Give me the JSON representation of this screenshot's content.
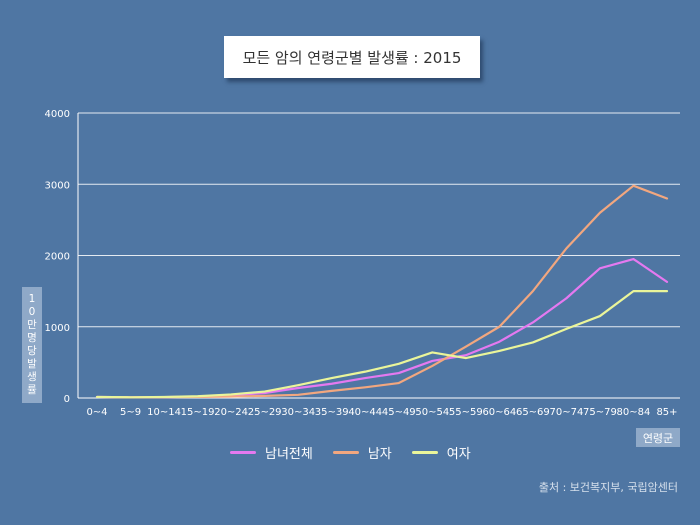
{
  "title": "모든 암의 연령군별 발생률 : 2015",
  "source": "출처 : 보건복지부, 국립암센터",
  "colors": {
    "background": "#4f76a3",
    "total": "#e579f0",
    "male": "#f2a77f",
    "female": "#eaf59a"
  },
  "chart_data": {
    "type": "line",
    "title": "모든 암의 연령군별 발생률 : 2015",
    "xlabel": "연령군",
    "ylabel": "10만 명당 발생률",
    "ylim": [
      0,
      4000
    ],
    "yticks": [
      "0",
      "1000",
      "2000",
      "3000",
      "4000"
    ],
    "grid": true,
    "legend_position": "bottom-center",
    "categories": [
      "0~4",
      "5~9",
      "10~14",
      "15~19",
      "20~24",
      "25~29",
      "30~34",
      "35~39",
      "40~44",
      "45~49",
      "50~54",
      "55~59",
      "60~64",
      "65~69",
      "70~74",
      "75~79",
      "80~84",
      "85+"
    ],
    "series": [
      {
        "name": "남녀전체",
        "color": "#e579f0",
        "values": [
          15,
          10,
          12,
          20,
          40,
          70,
          140,
          200,
          280,
          350,
          520,
          600,
          790,
          1060,
          1400,
          1820,
          1950,
          1630
        ]
      },
      {
        "name": "남자",
        "color": "#f2a77f",
        "values": [
          15,
          10,
          12,
          15,
          20,
          30,
          45,
          100,
          150,
          210,
          450,
          720,
          1000,
          1500,
          2100,
          2600,
          2980,
          2800
        ]
      },
      {
        "name": "여자",
        "color": "#eaf59a",
        "values": [
          15,
          10,
          14,
          25,
          50,
          90,
          180,
          280,
          370,
          480,
          640,
          560,
          660,
          780,
          970,
          1150,
          1500,
          1500
        ]
      }
    ]
  }
}
